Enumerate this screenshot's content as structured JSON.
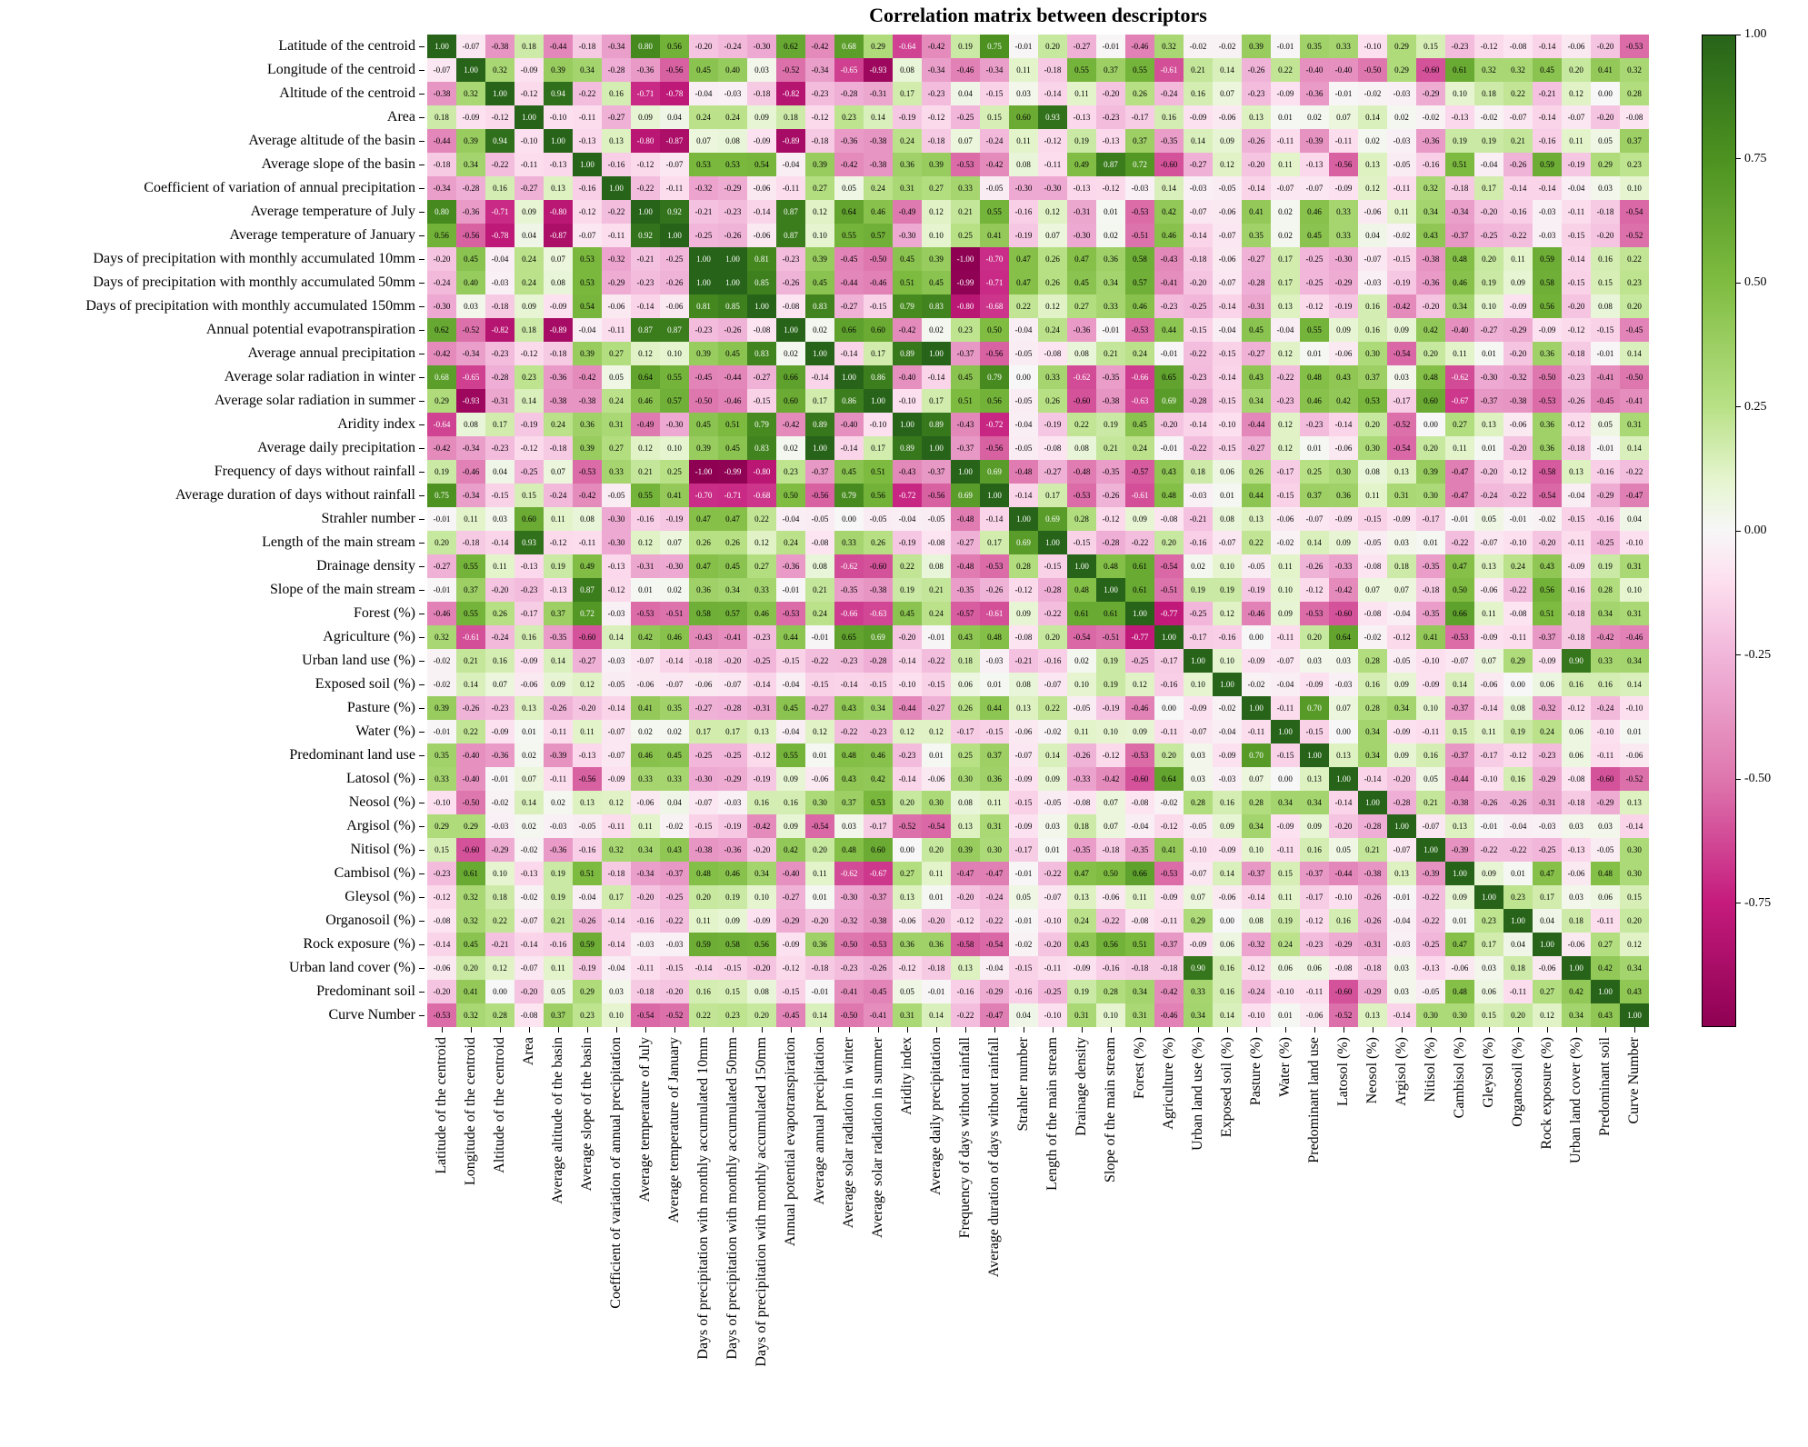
{
  "chart_data": {
    "type": "heatmap",
    "title": "Correlation matrix between descriptors",
    "vmin": -1,
    "vmax": 1,
    "grid": false,
    "colorbar_position": "right",
    "x_tick_rotation": 90,
    "labels": [
      "Latitude of the centroid",
      "Longitude of the centroid",
      "Altitude of the centroid",
      "Area",
      "Average altitude of the basin",
      "Average slope of the basin",
      "Coefficient of variation of annual precipitation",
      "Average temperature of July",
      "Average temperature of January",
      "Days of precipitation with monthly accumulated 10mm",
      "Days of precipitation with monthly accumulated 50mm",
      "Days of precipitation with monthly accumulated 150mm",
      "Annual potential evapotranspiration",
      "Average annual precipitation",
      "Average solar radiation in winter",
      "Average solar radiation in summer",
      "Aridity index",
      "Average daily precipitation",
      "Frequency of days without rainfall",
      "Average duration of days without rainfall",
      "Strahler number",
      "Length of the main stream",
      "Drainage density",
      "Slope of the main stream",
      "Forest (%)",
      "Agriculture (%)",
      "Urban land use (%)",
      "Exposed soil (%)",
      "Pasture (%)",
      "Water (%)",
      "Predominant land use",
      "Latosol (%)",
      "Neosol (%)",
      "Argisol (%)",
      "Nitisol (%)",
      "Cambisol (%)",
      "Gleysol (%)",
      "Organosoil (%)",
      "Rock exposure (%)",
      "Urban land cover (%)",
      "Predominant soil",
      "Curve Number"
    ],
    "matrix_upper_triangle": [
      [
        1.0,
        -0.07,
        -0.38,
        0.18,
        -0.44,
        -0.18,
        -0.34,
        0.8,
        0.56,
        -0.2,
        -0.24,
        -0.3,
        0.62,
        -0.42,
        0.68,
        0.29,
        -0.64,
        -0.42,
        0.19,
        0.75,
        -0.01,
        0.2,
        -0.27,
        -0.01,
        -0.46,
        0.32,
        -0.02,
        -0.02,
        0.39,
        -0.01,
        0.35,
        0.33,
        -0.1,
        0.29,
        0.15,
        -0.23,
        -0.12,
        -0.08,
        -0.14,
        -0.06,
        -0.2,
        -0.53
      ],
      [
        1.0,
        0.32,
        -0.09,
        0.39,
        0.34,
        -0.28,
        -0.36,
        -0.56,
        0.45,
        0.4,
        0.03,
        -0.52,
        -0.34,
        -0.65,
        -0.93,
        0.08,
        -0.34,
        -0.46,
        -0.34,
        0.11,
        -0.18,
        0.55,
        0.37,
        0.55,
        -0.61,
        0.21,
        0.14,
        -0.26,
        0.22,
        -0.4,
        -0.4,
        -0.5,
        0.29,
        -0.6,
        0.61,
        0.32,
        0.32,
        0.45,
        0.2,
        0.41,
        0.32
      ],
      [
        1.0,
        -0.12,
        0.94,
        -0.22,
        0.16,
        -0.71,
        -0.78,
        -0.04,
        -0.03,
        -0.18,
        -0.82,
        -0.23,
        -0.28,
        -0.31,
        0.17,
        -0.23,
        0.04,
        -0.15,
        0.03,
        -0.14,
        0.11,
        -0.2,
        0.26,
        -0.24,
        0.16,
        0.07,
        -0.23,
        -0.09,
        -0.36,
        -0.01,
        -0.02,
        -0.03,
        -0.29,
        0.1,
        0.18,
        0.22,
        -0.21,
        0.12,
        -0.0,
        0.28
      ],
      [
        1.0,
        -0.1,
        -0.11,
        -0.27,
        0.09,
        0.04,
        0.24,
        0.24,
        0.09,
        0.18,
        -0.12,
        0.23,
        0.14,
        -0.19,
        -0.12,
        -0.25,
        0.15,
        0.6,
        0.93,
        -0.13,
        -0.23,
        -0.17,
        0.16,
        -0.09,
        -0.06,
        0.13,
        0.01,
        0.02,
        0.07,
        0.14,
        0.02,
        -0.02,
        -0.13,
        -0.02,
        -0.07,
        -0.14,
        -0.07,
        -0.2,
        -0.08
      ],
      [
        1.0,
        -0.13,
        0.13,
        -0.8,
        -0.87,
        0.07,
        0.08,
        -0.09,
        -0.89,
        -0.18,
        -0.36,
        -0.38,
        0.24,
        -0.18,
        0.07,
        -0.24,
        0.11,
        -0.12,
        0.19,
        -0.13,
        0.37,
        -0.35,
        0.14,
        0.09,
        -0.26,
        -0.11,
        -0.39,
        -0.11,
        0.02,
        -0.03,
        -0.36,
        0.19,
        0.19,
        0.21,
        -0.16,
        0.11,
        0.05,
        0.37
      ],
      [
        1.0,
        -0.16,
        -0.12,
        -0.07,
        0.53,
        0.53,
        0.54,
        -0.04,
        0.39,
        -0.42,
        -0.38,
        0.36,
        0.39,
        -0.53,
        -0.42,
        0.08,
        -0.11,
        0.49,
        0.87,
        0.72,
        -0.6,
        -0.27,
        0.12,
        -0.2,
        0.11,
        -0.13,
        -0.56,
        0.13,
        -0.05,
        -0.16,
        0.51,
        -0.04,
        -0.26,
        0.59,
        -0.19,
        0.29,
        0.23
      ],
      [
        1.0,
        -0.22,
        -0.11,
        -0.32,
        -0.29,
        -0.06,
        -0.11,
        0.27,
        0.05,
        0.24,
        0.31,
        0.27,
        0.33,
        -0.05,
        -0.3,
        -0.3,
        -0.13,
        -0.12,
        -0.03,
        0.14,
        -0.03,
        -0.05,
        -0.14,
        -0.07,
        -0.07,
        -0.09,
        0.12,
        -0.11,
        0.32,
        -0.18,
        0.17,
        -0.14,
        -0.14,
        -0.04,
        0.03,
        0.1
      ],
      [
        1.0,
        0.92,
        -0.21,
        -0.23,
        -0.14,
        0.87,
        0.12,
        0.64,
        0.46,
        -0.49,
        0.12,
        0.21,
        0.55,
        -0.16,
        0.12,
        -0.31,
        0.01,
        -0.53,
        0.42,
        -0.07,
        -0.06,
        0.41,
        0.02,
        0.46,
        0.33,
        -0.06,
        0.11,
        0.34,
        -0.34,
        -0.2,
        -0.16,
        -0.03,
        -0.11,
        -0.18,
        -0.54
      ],
      [
        1.0,
        -0.25,
        -0.26,
        -0.06,
        0.87,
        0.1,
        0.55,
        0.57,
        -0.3,
        0.1,
        0.25,
        0.41,
        -0.19,
        0.07,
        -0.3,
        0.02,
        -0.51,
        0.46,
        -0.14,
        -0.07,
        0.35,
        0.02,
        0.45,
        0.33,
        0.04,
        -0.02,
        0.43,
        -0.37,
        -0.25,
        -0.22,
        -0.03,
        -0.15,
        -0.2,
        -0.52
      ],
      [
        1.0,
        1.0,
        0.81,
        -0.23,
        0.39,
        -0.45,
        -0.5,
        0.45,
        0.39,
        -1.0,
        -0.7,
        0.47,
        0.26,
        0.47,
        0.36,
        0.58,
        -0.43,
        -0.18,
        -0.06,
        -0.27,
        0.17,
        -0.25,
        -0.3,
        -0.07,
        -0.15,
        -0.38,
        0.48,
        0.2,
        0.11,
        0.59,
        -0.14,
        0.16,
        0.22
      ],
      [
        1.0,
        0.85,
        -0.26,
        0.45,
        -0.44,
        -0.46,
        0.51,
        0.45,
        -0.99,
        -0.71,
        0.47,
        0.26,
        0.45,
        0.34,
        0.57,
        -0.41,
        -0.2,
        -0.07,
        -0.28,
        0.17,
        -0.25,
        -0.29,
        -0.03,
        -0.19,
        -0.36,
        0.46,
        0.19,
        0.09,
        0.58,
        -0.15,
        0.15,
        0.23
      ],
      [
        1.0,
        -0.08,
        0.83,
        -0.27,
        -0.15,
        0.79,
        0.83,
        -0.8,
        -0.68,
        0.22,
        0.12,
        0.27,
        0.33,
        0.46,
        -0.23,
        -0.25,
        -0.14,
        -0.31,
        0.13,
        -0.12,
        -0.19,
        0.16,
        -0.42,
        -0.2,
        0.34,
        0.1,
        -0.09,
        0.56,
        -0.2,
        0.08,
        0.2
      ],
      [
        1.0,
        0.02,
        0.66,
        0.6,
        -0.42,
        0.02,
        0.23,
        0.5,
        -0.04,
        0.24,
        -0.36,
        -0.01,
        -0.53,
        0.44,
        -0.15,
        -0.04,
        0.45,
        -0.04,
        0.55,
        0.09,
        0.16,
        0.09,
        0.42,
        -0.4,
        -0.27,
        -0.29,
        -0.09,
        -0.12,
        -0.15,
        -0.45
      ],
      [
        1.0,
        -0.14,
        0.17,
        0.89,
        1.0,
        -0.37,
        -0.56,
        -0.05,
        -0.08,
        0.08,
        0.21,
        0.24,
        -0.01,
        -0.22,
        -0.15,
        -0.27,
        0.12,
        0.01,
        -0.06,
        0.3,
        -0.54,
        0.2,
        0.11,
        0.01,
        -0.2,
        0.36,
        -0.18,
        -0.01,
        0.14
      ],
      [
        1.0,
        0.86,
        -0.4,
        -0.14,
        0.45,
        0.79,
        0.0,
        0.33,
        -0.62,
        -0.35,
        -0.66,
        0.65,
        -0.23,
        -0.14,
        0.43,
        -0.22,
        0.48,
        0.43,
        0.37,
        0.03,
        0.48,
        -0.62,
        -0.3,
        -0.32,
        -0.5,
        -0.23,
        -0.41,
        -0.5
      ],
      [
        1.0,
        -0.1,
        0.17,
        0.51,
        0.56,
        -0.05,
        0.26,
        -0.6,
        -0.38,
        -0.63,
        0.69,
        -0.28,
        -0.15,
        0.34,
        -0.23,
        0.46,
        0.42,
        0.53,
        -0.17,
        0.6,
        -0.67,
        -0.37,
        -0.38,
        -0.53,
        -0.26,
        -0.45,
        -0.41
      ],
      [
        1.0,
        0.89,
        -0.43,
        -0.72,
        -0.04,
        -0.19,
        0.22,
        0.19,
        0.45,
        -0.2,
        -0.14,
        -0.1,
        -0.44,
        0.12,
        -0.23,
        -0.14,
        0.2,
        -0.52,
        -0.0,
        0.27,
        0.13,
        -0.06,
        0.36,
        -0.12,
        0.05,
        0.31
      ],
      [
        1.0,
        -0.37,
        -0.56,
        -0.05,
        -0.08,
        0.08,
        0.21,
        0.24,
        -0.01,
        -0.22,
        -0.15,
        -0.27,
        0.12,
        0.01,
        -0.06,
        0.3,
        -0.54,
        0.2,
        0.11,
        0.01,
        -0.2,
        0.36,
        -0.18,
        -0.01,
        0.14
      ],
      [
        1.0,
        0.69,
        -0.48,
        -0.27,
        -0.48,
        -0.35,
        -0.57,
        0.43,
        0.18,
        0.06,
        0.26,
        -0.17,
        0.25,
        0.3,
        0.08,
        0.13,
        0.39,
        -0.47,
        -0.2,
        -0.12,
        -0.58,
        0.13,
        -0.16,
        -0.22
      ],
      [
        1.0,
        -0.14,
        0.17,
        -0.53,
        -0.26,
        -0.61,
        0.48,
        -0.03,
        0.01,
        0.44,
        -0.15,
        0.37,
        0.36,
        0.11,
        0.31,
        0.3,
        -0.47,
        -0.24,
        -0.22,
        -0.54,
        -0.04,
        -0.29,
        -0.47
      ],
      [
        1.0,
        0.69,
        0.28,
        -0.12,
        0.09,
        -0.08,
        -0.21,
        0.08,
        0.13,
        -0.06,
        -0.07,
        -0.09,
        -0.15,
        -0.09,
        -0.17,
        -0.01,
        0.05,
        -0.01,
        -0.02,
        -0.15,
        -0.16,
        0.04
      ],
      [
        1.0,
        -0.15,
        -0.28,
        -0.22,
        0.2,
        -0.16,
        -0.07,
        0.22,
        -0.02,
        0.14,
        0.09,
        -0.05,
        0.03,
        0.01,
        -0.22,
        -0.07,
        -0.1,
        -0.2,
        -0.11,
        -0.25,
        -0.1
      ],
      [
        1.0,
        0.48,
        0.61,
        -0.54,
        0.02,
        0.1,
        -0.05,
        0.11,
        -0.26,
        -0.33,
        -0.08,
        0.18,
        -0.35,
        0.47,
        0.13,
        0.24,
        0.43,
        -0.09,
        0.19,
        0.31
      ],
      [
        1.0,
        0.61,
        -0.51,
        0.19,
        0.19,
        -0.19,
        0.1,
        -0.12,
        -0.42,
        0.07,
        0.07,
        -0.18,
        0.5,
        -0.06,
        -0.22,
        0.56,
        -0.16,
        0.28,
        0.1
      ],
      [
        1.0,
        -0.77,
        -0.25,
        0.12,
        -0.46,
        0.09,
        -0.53,
        -0.6,
        -0.08,
        -0.04,
        -0.35,
        0.66,
        0.11,
        -0.08,
        0.51,
        -0.18,
        0.34,
        0.31
      ],
      [
        1.0,
        -0.17,
        -0.16,
        0.0,
        -0.11,
        0.2,
        0.64,
        -0.02,
        -0.12,
        0.41,
        -0.53,
        -0.09,
        -0.11,
        -0.37,
        -0.18,
        -0.42,
        -0.46
      ],
      [
        1.0,
        0.1,
        -0.09,
        -0.07,
        0.03,
        0.03,
        0.28,
        -0.05,
        -0.1,
        -0.07,
        0.07,
        0.29,
        -0.09,
        0.9,
        0.33,
        0.34
      ],
      [
        1.0,
        -0.02,
        -0.04,
        -0.09,
        -0.03,
        0.16,
        0.09,
        -0.09,
        0.14,
        -0.06,
        -0.0,
        0.06,
        0.16,
        0.16,
        0.14
      ],
      [
        1.0,
        -0.11,
        0.7,
        0.07,
        0.28,
        0.34,
        0.1,
        -0.37,
        -0.14,
        0.08,
        -0.32,
        -0.12,
        -0.24,
        -0.1
      ],
      [
        1.0,
        -0.15,
        -0.0,
        0.34,
        -0.09,
        -0.11,
        0.15,
        0.11,
        0.19,
        0.24,
        0.06,
        -0.1,
        0.01
      ],
      [
        1.0,
        0.13,
        0.34,
        0.09,
        0.16,
        -0.37,
        -0.17,
        -0.12,
        -0.23,
        0.06,
        -0.11,
        -0.06
      ],
      [
        1.0,
        -0.14,
        -0.2,
        0.05,
        -0.44,
        -0.1,
        0.16,
        -0.29,
        -0.08,
        -0.6,
        -0.52
      ],
      [
        1.0,
        -0.28,
        0.21,
        -0.38,
        -0.26,
        -0.26,
        -0.31,
        -0.18,
        -0.29,
        0.13
      ],
      [
        1.0,
        -0.07,
        0.13,
        -0.01,
        -0.04,
        -0.03,
        0.03,
        0.03,
        -0.14
      ],
      [
        1.0,
        -0.39,
        -0.22,
        -0.22,
        -0.25,
        -0.13,
        -0.05,
        0.3
      ],
      [
        1.0,
        0.09,
        0.01,
        0.47,
        -0.06,
        0.48,
        0.3
      ],
      [
        1.0,
        0.23,
        0.17,
        0.03,
        0.06,
        0.15
      ],
      [
        1.0,
        0.04,
        0.18,
        -0.11,
        0.2
      ],
      [
        1.0,
        -0.06,
        0.27,
        0.12
      ],
      [
        1.0,
        0.42,
        0.34
      ],
      [
        1.0,
        0.43
      ],
      [
        1.0
      ]
    ],
    "colormap": {
      "name": "PiYG",
      "stops": [
        {
          "v": -1.0,
          "color": "#8e0152"
        },
        {
          "v": -0.75,
          "color": "#c51b7d"
        },
        {
          "v": -0.5,
          "color": "#de77ae"
        },
        {
          "v": -0.25,
          "color": "#f1b6da"
        },
        {
          "v": -0.1,
          "color": "#fde0ef"
        },
        {
          "v": 0.0,
          "color": "#f7f7f7"
        },
        {
          "v": 0.1,
          "color": "#e6f5d0"
        },
        {
          "v": 0.25,
          "color": "#b8e186"
        },
        {
          "v": 0.5,
          "color": "#7fbc41"
        },
        {
          "v": 0.75,
          "color": "#4d9221"
        },
        {
          "v": 1.0,
          "color": "#276419"
        }
      ]
    },
    "cell_text_colors": {
      "light_bg": "#000000",
      "dark_bg": "#ffffff"
    },
    "colorbar_ticks": [
      {
        "label": "1.00",
        "value": 1.0
      },
      {
        "label": "0.75",
        "value": 0.75
      },
      {
        "label": "0.50",
        "value": 0.5
      },
      {
        "label": "0.25",
        "value": 0.25
      },
      {
        "label": "0.00",
        "value": 0.0
      },
      {
        "label": "-0.25",
        "value": -0.25
      },
      {
        "label": "-0.50",
        "value": -0.5
      },
      {
        "label": "-0.75",
        "value": -0.75
      }
    ]
  }
}
